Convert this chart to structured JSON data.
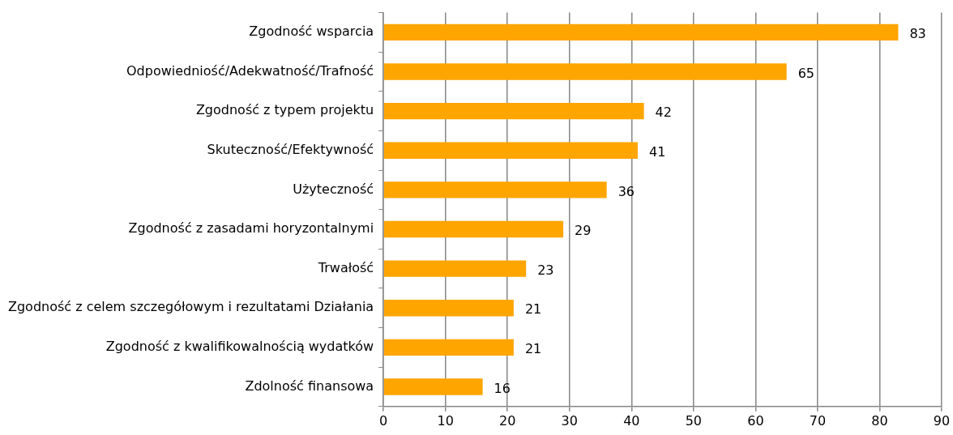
{
  "chart_data": {
    "type": "bar",
    "orientation": "horizontal",
    "categories": [
      "Zgodność wsparcia",
      "Odpowiedniość/Adekwatność/Trafność",
      "Zgodność z typem projektu",
      "Skuteczność/Efektywność",
      "Użyteczność",
      "Zgodność z zasadami horyzontalnymi",
      "Trwałość",
      "Zgodność z celem szczegółowym i rezultatami Działania",
      "Zgodność z kwalifikowalnością wydatków",
      "Zdolność finansowa"
    ],
    "values": [
      83,
      65,
      42,
      41,
      36,
      29,
      23,
      21,
      21,
      16
    ],
    "color": "#ffa500",
    "xlim": [
      0,
      90
    ],
    "xticks": [
      0,
      10,
      20,
      30,
      40,
      50,
      60,
      70,
      80,
      90
    ],
    "grid": "x",
    "legend": false,
    "data_labels": true
  }
}
